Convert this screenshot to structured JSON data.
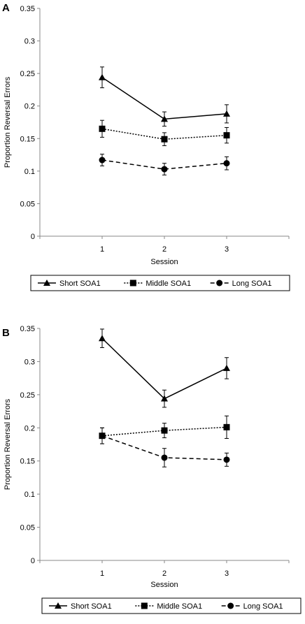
{
  "chart_data": [
    {
      "panel_label": "A",
      "type": "line",
      "categories": [
        "1",
        "2",
        "3"
      ],
      "x": [
        1,
        2,
        3
      ],
      "xlabel": "Session",
      "ylabel": "Proportion Reversal Errors",
      "ylim": [
        0,
        0.35
      ],
      "yticks": [
        "0",
        "0.05",
        "0.1",
        "0.15",
        "0.2",
        "0.25",
        "0.3",
        "0.35"
      ],
      "grid": false,
      "legend_position": "bottom",
      "series": [
        {
          "name": "Short SOA1",
          "values": [
            0.244,
            0.18,
            0.188
          ],
          "errors": [
            0.016,
            0.011,
            0.014
          ],
          "marker": "triangle",
          "dash": "solid"
        },
        {
          "name": "Middle SOA1",
          "values": [
            0.165,
            0.149,
            0.155
          ],
          "errors": [
            0.013,
            0.01,
            0.012
          ],
          "marker": "square",
          "dash": "dotted"
        },
        {
          "name": "Long SOA1",
          "values": [
            0.117,
            0.103,
            0.112
          ],
          "errors": [
            0.009,
            0.009,
            0.01
          ],
          "marker": "circle",
          "dash": "dashed"
        }
      ]
    },
    {
      "panel_label": "B",
      "type": "line",
      "categories": [
        "1",
        "2",
        "3"
      ],
      "x": [
        1,
        2,
        3
      ],
      "xlabel": "Session",
      "ylabel": "Proportion Reversal Errors",
      "ylim": [
        0,
        0.35
      ],
      "yticks": [
        "0",
        "0.05",
        "0.1",
        "0.15",
        "0.2",
        "0.25",
        "0.3",
        "0.35"
      ],
      "grid": false,
      "legend_position": "bottom",
      "series": [
        {
          "name": "Short SOA1",
          "values": [
            0.335,
            0.244,
            0.29
          ],
          "errors": [
            0.014,
            0.013,
            0.016
          ],
          "marker": "triangle",
          "dash": "solid"
        },
        {
          "name": "Middle SOA1",
          "values": [
            0.188,
            0.196,
            0.201
          ],
          "errors": [
            0.012,
            0.011,
            0.017
          ],
          "marker": "square",
          "dash": "dotted"
        },
        {
          "name": "Long SOA1",
          "values": [
            0.188,
            0.155,
            0.152
          ],
          "errors": [
            0.012,
            0.014,
            0.01
          ],
          "marker": "circle",
          "dash": "dashed"
        }
      ]
    }
  ]
}
